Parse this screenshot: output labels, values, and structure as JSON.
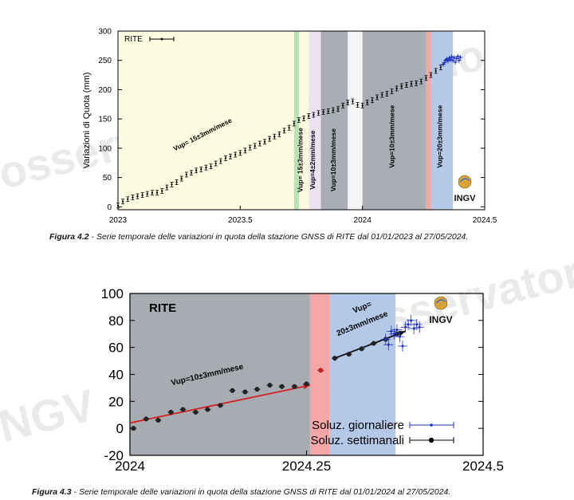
{
  "watermarks": [
    "osservatorio vesuviano",
    "osservatorio vesuviano",
    "INGV - OSV"
  ],
  "logo_text": "INGV",
  "chart_data": [
    {
      "type": "scatter",
      "title": "",
      "station": "RITE",
      "xlabel": "",
      "ylabel": "Variazioni di Quota (mm)",
      "xlim": [
        2023,
        2024.5
      ],
      "ylim": [
        -5,
        300
      ],
      "xticks": [
        "2023",
        "2023.5",
        "2024",
        "2024.5"
      ],
      "yticks": [
        "0",
        "50",
        "100",
        "150",
        "200",
        "250",
        "300"
      ],
      "legend": "RITE",
      "bands": [
        {
          "from": 2023.0,
          "to": 2023.72,
          "color": "#fdfce0"
        },
        {
          "from": 2023.72,
          "to": 2023.74,
          "color": "#b9e3b4"
        },
        {
          "from": 2023.74,
          "to": 2023.78,
          "color": "#fdfce0"
        },
        {
          "from": 2023.78,
          "to": 2023.83,
          "color": "#ece2f2"
        },
        {
          "from": 2023.83,
          "to": 2023.94,
          "color": "#a9adb5"
        },
        {
          "from": 2023.94,
          "to": 2024.0,
          "color": "#f5f5f5"
        },
        {
          "from": 2024.0,
          "to": 2024.26,
          "color": "#a9adb5"
        },
        {
          "from": 2024.26,
          "to": 2024.28,
          "color": "#f5a7a7"
        },
        {
          "from": 2024.28,
          "to": 2024.37,
          "color": "#b5c9e8"
        }
      ],
      "band_labels": [
        {
          "text": "Vup= 15±3mm/mese",
          "x": 2023.35,
          "y": 120
        },
        {
          "text": "Vup= 15±3mm/mese",
          "x": 2023.755,
          "y": 80
        },
        {
          "text": "Vup=4±2mm/mese",
          "x": 2023.805,
          "y": 80
        },
        {
          "text": "Vup=10±3mm/mese",
          "x": 2023.89,
          "y": 80
        },
        {
          "text": "Vup=10±3mm/mese",
          "x": 2024.13,
          "y": 120
        },
        {
          "text": "Vup=20±3mm/mese",
          "x": 2024.325,
          "y": 120
        }
      ],
      "series": [
        {
          "name": "RITE",
          "color": "#000000",
          "x": [
            2023.0,
            2023.02,
            2023.04,
            2023.06,
            2023.08,
            2023.1,
            2023.12,
            2023.14,
            2023.16,
            2023.18,
            2023.2,
            2023.22,
            2023.24,
            2023.26,
            2023.28,
            2023.3,
            2023.32,
            2023.34,
            2023.36,
            2023.38,
            2023.4,
            2023.42,
            2023.44,
            2023.46,
            2023.48,
            2023.5,
            2023.52,
            2023.54,
            2023.56,
            2023.58,
            2023.6,
            2023.62,
            2023.64,
            2023.66,
            2023.68,
            2023.7,
            2023.72,
            2023.74,
            2023.76,
            2023.78,
            2023.8,
            2023.82,
            2023.84,
            2023.86,
            2023.88,
            2023.9,
            2023.92,
            2023.94,
            2023.96,
            2023.98,
            2024.0,
            2024.02,
            2024.04,
            2024.06,
            2024.08,
            2024.1,
            2024.12,
            2024.14,
            2024.16,
            2024.18,
            2024.2,
            2024.22,
            2024.24,
            2024.26,
            2024.28,
            2024.3,
            2024.32
          ],
          "y": [
            2,
            9,
            13,
            16,
            18,
            20,
            22,
            24,
            24,
            27,
            33,
            38,
            42,
            48,
            55,
            58,
            62,
            64,
            67,
            69,
            74,
            78,
            83,
            86,
            89,
            92,
            96,
            101,
            104,
            108,
            111,
            116,
            120,
            124,
            130,
            135,
            142,
            148,
            151,
            155,
            157,
            160,
            162,
            163,
            165,
            167,
            173,
            178,
            180,
            174,
            173,
            178,
            182,
            187,
            191,
            193,
            197,
            202,
            206,
            208,
            210,
            211,
            214,
            220,
            225,
            232,
            238
          ]
        },
        {
          "name": "RITE-daily",
          "color": "#1c2fc2",
          "x": [
            2024.33,
            2024.335,
            2024.34,
            2024.345,
            2024.35,
            2024.355,
            2024.36,
            2024.365,
            2024.37,
            2024.375,
            2024.38,
            2024.385,
            2024.39,
            2024.395,
            2024.4
          ],
          "y": [
            243,
            246,
            250,
            252,
            249,
            254,
            251,
            256,
            250,
            255,
            247,
            253,
            257,
            250,
            255
          ]
        }
      ]
    },
    {
      "type": "scatter",
      "title": "",
      "station": "RITE",
      "xlabel": "",
      "ylabel": "",
      "xlim": [
        2024,
        2024.5
      ],
      "ylim": [
        -20,
        100
      ],
      "xticks": [
        "2024",
        "2024.25",
        "2024.5"
      ],
      "yticks": [
        "-20",
        "0",
        "20",
        "40",
        "60",
        "80",
        "100"
      ],
      "bands": [
        {
          "from": 2024.0,
          "to": 2024.255,
          "color": "#a7abb2"
        },
        {
          "from": 2024.255,
          "to": 2024.283,
          "color": "#f5a7a7"
        },
        {
          "from": 2024.283,
          "to": 2024.376,
          "color": "#b4c8e8"
        }
      ],
      "annotations": [
        {
          "text": "Vup=10±3mm/mese",
          "x": 2024.11,
          "y": 38
        },
        {
          "text": "Vup=",
          "x": 2024.33,
          "y": 88
        },
        {
          "text": "20±3mm/mese",
          "x": 2024.33,
          "y": 76
        }
      ],
      "legend": [
        "Soluz. giornaliere",
        "Soluz. settimanali"
      ],
      "fits": [
        {
          "name": "fit-10",
          "color": "#d42020",
          "x": [
            2024.0,
            2024.255
          ],
          "y": [
            4,
            32
          ]
        },
        {
          "name": "fit-20",
          "color": "#111111",
          "x": [
            2024.29,
            2024.39
          ],
          "y": [
            52,
            72
          ]
        }
      ],
      "series": [
        {
          "name": "Soluz. settimanali",
          "color": "#000000",
          "x": [
            2024.005,
            2024.023,
            2024.04,
            2024.058,
            2024.075,
            2024.093,
            2024.11,
            2024.128,
            2024.145,
            2024.163,
            2024.18,
            2024.198,
            2024.215,
            2024.233,
            2024.25,
            2024.27,
            2024.29,
            2024.31,
            2024.328,
            2024.345,
            2024.362,
            2024.378
          ],
          "y": [
            0,
            7,
            6,
            12,
            14,
            12,
            14,
            17,
            28,
            27,
            29,
            32,
            31,
            31,
            33,
            43,
            52,
            55,
            59,
            63,
            66,
            70
          ]
        },
        {
          "name": "Soluz. giornaliere",
          "color": "#1c2fc2",
          "x": [
            2024.362,
            2024.366,
            2024.37,
            2024.374,
            2024.378,
            2024.382,
            2024.386,
            2024.39,
            2024.394,
            2024.398,
            2024.402,
            2024.406,
            2024.41
          ],
          "y": [
            66,
            62,
            72,
            70,
            73,
            68,
            61,
            75,
            77,
            80,
            74,
            77,
            75
          ]
        }
      ]
    }
  ],
  "captions": {
    "fig1_label": "Figura 4.2",
    "fig1_text": " - Serie temporale delle variazioni in quota della stazione GNSS di RITE dal 01/01/2023 al 27/05/2024.",
    "fig2_label": "Figura 4.3",
    "fig2_text": " - Serie temporale delle variazioni in quota della stazione GNSS di RITE dal 01/01/2024 al 27/05/2024."
  }
}
